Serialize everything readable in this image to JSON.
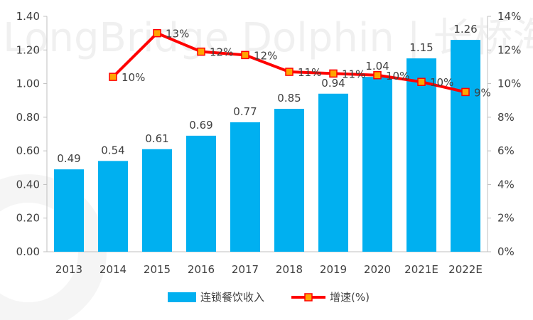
{
  "watermark": "LongBridge Dolphin | 长桥海豚投研",
  "chart_data": {
    "type": "bar+line",
    "categories": [
      "2013",
      "2014",
      "2015",
      "2016",
      "2017",
      "2018",
      "2019",
      "2020",
      "2021E",
      "2022E"
    ],
    "series": [
      {
        "name": "连锁餐饮收入",
        "type": "bar",
        "axis": "left",
        "color": "#00b0f0",
        "values": [
          0.49,
          0.54,
          0.61,
          0.69,
          0.77,
          0.85,
          0.94,
          1.04,
          1.15,
          1.26
        ],
        "labels": [
          "0.49",
          "0.54",
          "0.61",
          "0.69",
          "0.77",
          "0.85",
          "0.94",
          "1.04",
          "1.15",
          "1.26"
        ]
      },
      {
        "name": "增速(%)",
        "type": "line",
        "axis": "right",
        "color": "#ff0000",
        "marker_color": "#ffa500",
        "values": [
          null,
          10.4,
          13.0,
          11.9,
          11.7,
          10.7,
          10.6,
          10.5,
          10.1,
          9.5
        ],
        "labels": [
          "",
          "10%",
          "13%",
          "12%",
          "12%",
          "11%",
          "11%",
          "10%",
          "10%",
          "9%"
        ]
      }
    ],
    "y_left": {
      "ylim": [
        0,
        1.4
      ],
      "ticks": [
        "0.00",
        "0.20",
        "0.40",
        "0.60",
        "0.80",
        "1.00",
        "1.20",
        "1.40"
      ]
    },
    "y_right": {
      "ylim": [
        0,
        14
      ],
      "ticks": [
        "0%",
        "2%",
        "4%",
        "6%",
        "8%",
        "10%",
        "12%",
        "14%"
      ]
    },
    "grid": false,
    "legend": "bottom-center",
    "title": "",
    "xlabel": "",
    "ylabel": ""
  }
}
